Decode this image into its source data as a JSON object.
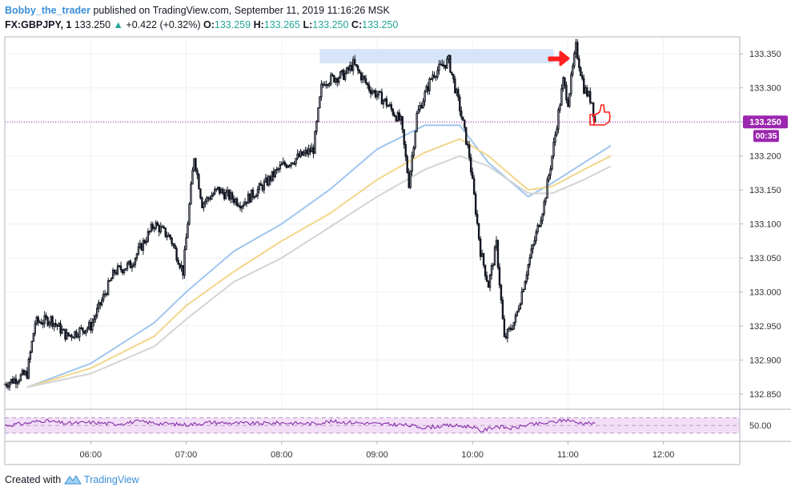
{
  "header": {
    "author": "Bobby_the_trader",
    "published_text": "published on TradingView.com, September 11, 2019 11:16:26 MSK",
    "symbol": "FX:GBPJPY, 1",
    "last": "133.250",
    "change": "+0.422 (+0.32%)",
    "ohlc": [
      {
        "label": "O:",
        "value": "133.259"
      },
      {
        "label": "H:",
        "value": "133.265"
      },
      {
        "label": "L:",
        "value": "133.250"
      },
      {
        "label": "C:",
        "value": "133.250"
      }
    ]
  },
  "chart_data": {
    "type": "line",
    "symbol": "GBPJPY",
    "timeframe": "1",
    "price_axis": {
      "ticks": [
        "133.350",
        "133.300",
        "133.250",
        "133.200",
        "133.150",
        "133.100",
        "133.050",
        "133.000",
        "132.950",
        "132.900",
        "132.850"
      ],
      "range": [
        132.83,
        133.375
      ]
    },
    "time_axis": {
      "ticks": [
        "06:00",
        "07:00",
        "08:00",
        "09:00",
        "10:00",
        "11:00",
        "12:00"
      ],
      "range": [
        "05:06",
        "12:48"
      ]
    },
    "current_price_label": "133.250",
    "countdown_label": "00:35",
    "current_price": 133.25,
    "resistance_zone": {
      "from_time": "08:24",
      "to_time": "10:51",
      "low": 133.336,
      "high": 133.357
    },
    "colors": {
      "candle_up": "#ffffff",
      "candle_down": "#131722",
      "wick": "#131722",
      "highlight": "#d9b3e6",
      "ma_fast": "#9fc5ee",
      "ma_mid": "#f2d68b",
      "ma_slow": "#d4d4d4",
      "price_line": "#9c27b0",
      "zone": "#cfe0f7",
      "rsi_fill": "#f3def7",
      "rsi_line": "#7b1fa2",
      "annot": "#ff1f1f"
    },
    "series": [
      {
        "name": "GBPJPY close (approx.)",
        "x": [
          "05:06",
          "05:20",
          "05:25",
          "05:35",
          "05:45",
          "06:00",
          "06:15",
          "06:25",
          "06:40",
          "06:50",
          "06:58",
          "07:05",
          "07:10",
          "07:20",
          "07:35",
          "07:50",
          "08:00",
          "08:20",
          "08:25",
          "08:27",
          "08:40",
          "08:45",
          "08:55",
          "09:05",
          "09:15",
          "09:20",
          "09:25",
          "09:35",
          "09:45",
          "09:52",
          "09:58",
          "10:05",
          "10:10",
          "10:15",
          "10:20",
          "10:27",
          "10:35",
          "10:45",
          "10:50",
          "10:57",
          "11:00",
          "11:05",
          "11:10",
          "11:15",
          "11:17"
        ],
        "y": [
          132.865,
          132.88,
          132.955,
          132.96,
          132.935,
          132.95,
          133.03,
          133.04,
          133.1,
          133.08,
          133.03,
          133.2,
          133.13,
          133.15,
          133.13,
          133.16,
          133.185,
          133.21,
          133.3,
          133.31,
          133.32,
          133.335,
          133.3,
          133.28,
          133.25,
          133.16,
          133.26,
          133.32,
          133.34,
          133.27,
          133.2,
          133.06,
          133.01,
          133.07,
          132.93,
          132.96,
          133.04,
          133.13,
          133.2,
          133.31,
          133.28,
          133.36,
          133.3,
          133.28,
          133.25
        ]
      },
      {
        "name": "MA fast",
        "x": [
          "05:20",
          "06:00",
          "06:40",
          "07:00",
          "07:30",
          "08:00",
          "08:30",
          "09:00",
          "09:30",
          "09:52",
          "10:10",
          "10:35",
          "10:50",
          "11:10",
          "11:27"
        ],
        "y": [
          132.86,
          132.895,
          132.955,
          133.0,
          133.06,
          133.1,
          133.15,
          133.21,
          133.245,
          133.245,
          133.19,
          133.14,
          133.16,
          133.19,
          133.215
        ]
      },
      {
        "name": "MA mid",
        "x": [
          "05:20",
          "06:00",
          "06:40",
          "07:00",
          "07:30",
          "08:00",
          "08:30",
          "09:00",
          "09:30",
          "09:52",
          "10:10",
          "10:35",
          "10:50",
          "11:10",
          "11:27"
        ],
        "y": [
          132.86,
          132.888,
          132.935,
          132.98,
          133.03,
          133.075,
          133.115,
          133.165,
          133.205,
          133.225,
          133.2,
          133.15,
          133.155,
          133.18,
          133.2
        ]
      },
      {
        "name": "MA slow",
        "x": [
          "05:20",
          "06:00",
          "06:40",
          "07:00",
          "07:30",
          "08:00",
          "08:30",
          "09:00",
          "09:30",
          "09:52",
          "10:10",
          "10:35",
          "10:50",
          "11:10",
          "11:27"
        ],
        "y": [
          132.86,
          132.88,
          132.92,
          132.96,
          133.015,
          133.05,
          133.095,
          133.14,
          133.18,
          133.2,
          133.185,
          133.145,
          133.145,
          133.165,
          133.185
        ]
      }
    ],
    "rsi": {
      "label": "50.00",
      "levels": [
        70,
        50,
        30
      ],
      "x": [
        "05:06",
        "05:20",
        "05:30",
        "05:45",
        "06:00",
        "06:15",
        "06:30",
        "06:45",
        "07:00",
        "07:15",
        "07:30",
        "07:45",
        "08:00",
        "08:20",
        "08:30",
        "08:45",
        "09:00",
        "09:15",
        "09:30",
        "09:45",
        "10:00",
        "10:05",
        "10:15",
        "10:25",
        "10:35",
        "10:45",
        "10:55",
        "11:00",
        "11:05",
        "11:15",
        "11:17"
      ],
      "y": [
        50,
        56,
        63,
        55,
        58,
        54,
        60,
        55,
        52,
        58,
        56,
        55,
        57,
        55,
        60,
        58,
        54,
        52,
        45,
        50,
        47,
        35,
        48,
        42,
        52,
        55,
        62,
        65,
        58,
        56,
        52
      ]
    },
    "annotations": [
      "red arrow pointing at high",
      "thumbs up icon"
    ]
  },
  "footer": {
    "created_with": "Created with",
    "brand": "TradingView"
  }
}
